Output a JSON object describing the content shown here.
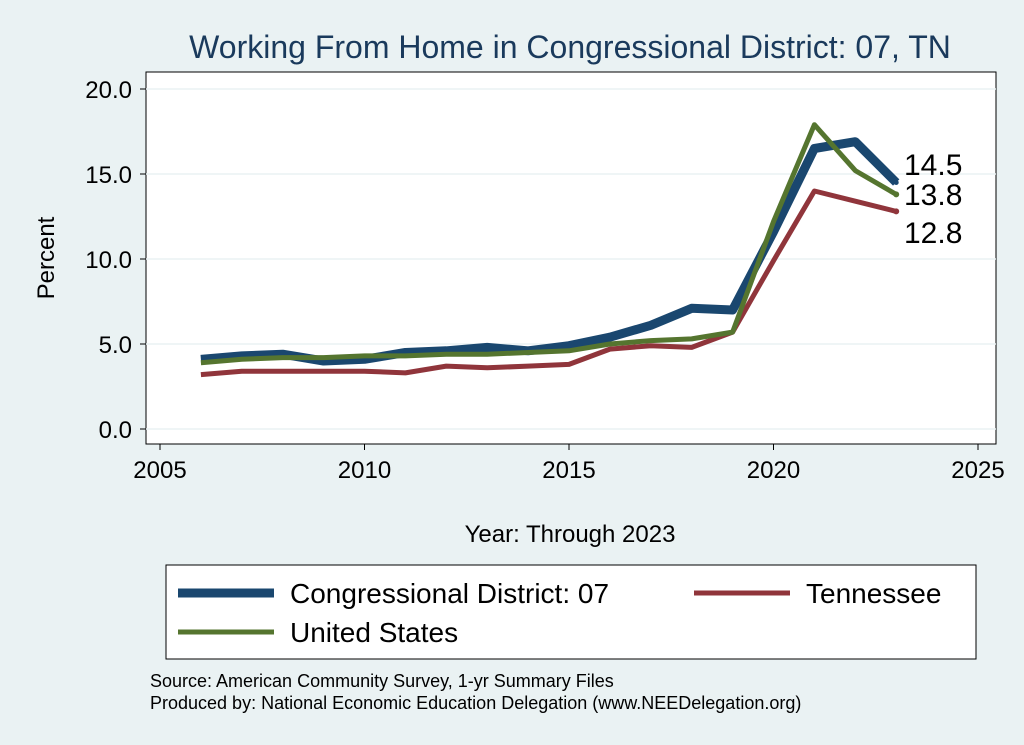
{
  "chart_data": {
    "type": "line",
    "title": "Working From Home in Congressional District: 07, TN",
    "xlabel": "Year: Through 2023",
    "ylabel": "Percent",
    "xlim": [
      2005,
      2025
    ],
    "ylim": [
      0,
      20
    ],
    "x_ticks": [
      "2005",
      "2010",
      "2015",
      "2020",
      "2025"
    ],
    "y_ticks": [
      "0.0",
      "5.0",
      "10.0",
      "15.0",
      "20.0"
    ],
    "grid": true,
    "legend_position": "bottom",
    "x": [
      2006,
      2007,
      2008,
      2009,
      2010,
      2011,
      2012,
      2013,
      2014,
      2015,
      2016,
      2017,
      2018,
      2019,
      2020,
      2021,
      2022,
      2023
    ],
    "series": [
      {
        "name": "Congressional District: 07",
        "color": "#1a476f",
        "values": [
          4.1,
          4.3,
          4.4,
          4.0,
          4.1,
          4.5,
          4.6,
          4.8,
          4.6,
          4.9,
          5.4,
          6.1,
          7.1,
          7.0,
          11.6,
          16.5,
          16.9,
          14.5
        ],
        "end_label": "14.5"
      },
      {
        "name": "Tennessee",
        "color": "#90353b",
        "values": [
          3.2,
          3.4,
          3.4,
          3.4,
          3.4,
          3.3,
          3.7,
          3.6,
          3.7,
          3.8,
          4.7,
          4.9,
          4.8,
          5.7,
          9.9,
          14.0,
          13.4,
          12.8
        ],
        "end_label": "12.8"
      },
      {
        "name": "United States",
        "color": "#55752f",
        "values": [
          3.9,
          4.1,
          4.2,
          4.2,
          4.3,
          4.3,
          4.4,
          4.4,
          4.5,
          4.6,
          5.0,
          5.2,
          5.3,
          5.7,
          12.2,
          17.9,
          15.2,
          13.8
        ],
        "end_label": "13.8"
      }
    ],
    "source_lines": [
      "Source: American Community Survey, 1-yr Summary Files",
      "Produced by: National Economic Education Delegation (www.NEEDelegation.org)"
    ]
  }
}
